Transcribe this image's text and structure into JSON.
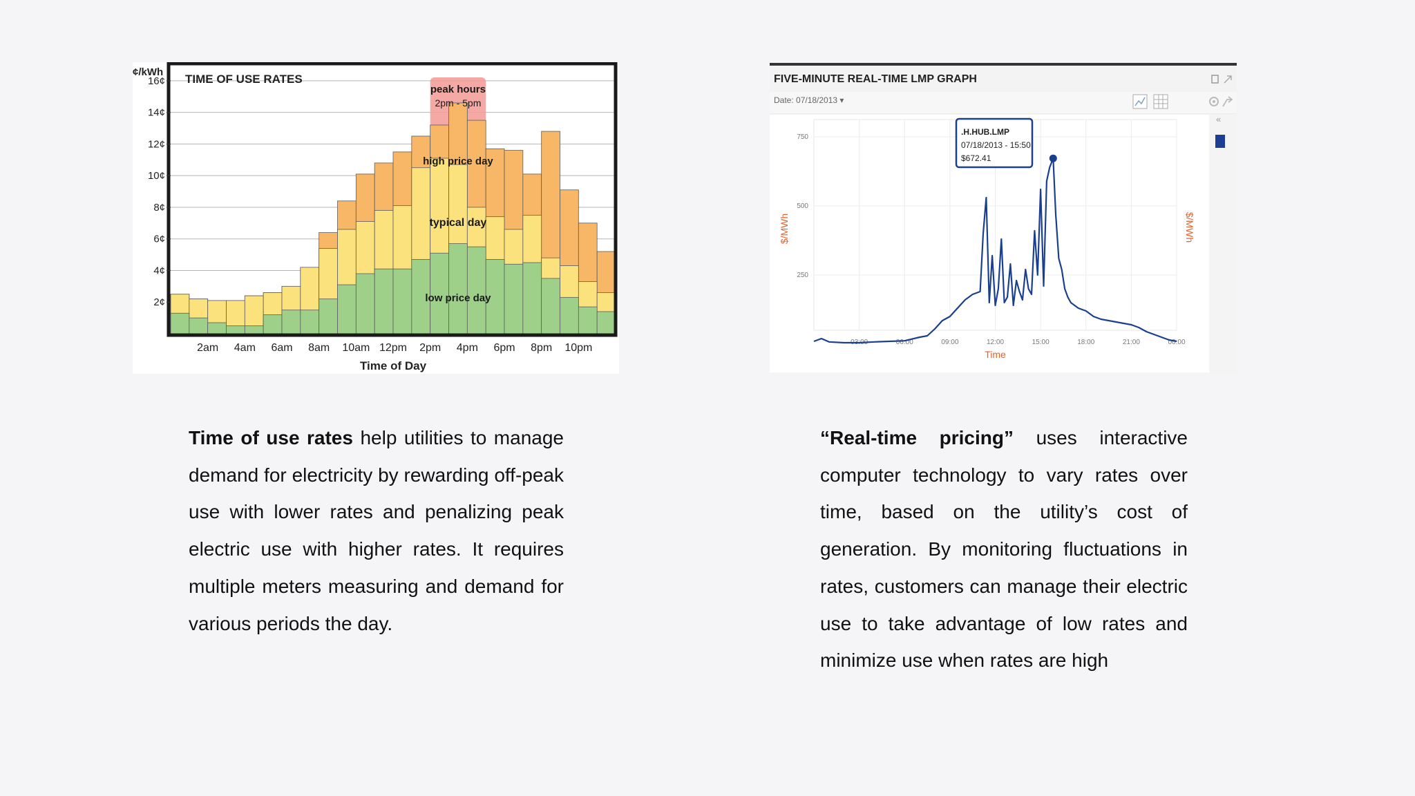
{
  "chart_data": [
    {
      "type": "bar",
      "title": "TIME OF USE RATES",
      "ylabel": "¢/kWh",
      "xlabel": "Time of Day",
      "ylim": [
        0,
        17
      ],
      "yticks": [
        "2¢",
        "4¢",
        "6¢",
        "8¢",
        "10¢",
        "12¢",
        "14¢",
        "16¢"
      ],
      "yticks_values": [
        2,
        4,
        6,
        8,
        10,
        12,
        14,
        16
      ],
      "xticks": [
        "2am",
        "4am",
        "6am",
        "8am",
        "10am",
        "12pm",
        "2pm",
        "4pm",
        "6pm",
        "8pm",
        "10pm"
      ],
      "bars_per_day": 24,
      "series": [
        {
          "name": "low price day",
          "color": "#9fd08a",
          "values": [
            1.3,
            1.0,
            0.7,
            0.5,
            0.5,
            1.2,
            1.5,
            1.5,
            2.2,
            3.1,
            3.8,
            4.1,
            4.1,
            4.7,
            5.1,
            5.7,
            5.5,
            4.7,
            4.4,
            4.5,
            3.5,
            2.3,
            1.7,
            1.4
          ]
        },
        {
          "name": "typical day",
          "color": "#fbe27d",
          "values": [
            2.5,
            2.2,
            2.1,
            2.1,
            2.4,
            2.6,
            3.0,
            4.2,
            5.4,
            6.6,
            7.1,
            7.8,
            8.1,
            10.5,
            11.1,
            10.7,
            8.0,
            7.4,
            6.6,
            7.5,
            4.8,
            4.3,
            3.3,
            2.6
          ]
        },
        {
          "name": "high price day",
          "color": "#f7b766",
          "values": [
            2.5,
            2.2,
            2.1,
            2.1,
            2.4,
            2.6,
            3.0,
            4.2,
            6.4,
            8.4,
            10.1,
            10.8,
            11.5,
            12.5,
            13.2,
            14.6,
            13.5,
            11.7,
            11.6,
            10.1,
            12.8,
            9.1,
            7.0,
            5.2
          ]
        }
      ],
      "annotations": [
        {
          "text": "peak hours",
          "subtext": "2pm - 5pm",
          "hours": [
            14,
            17
          ],
          "color": "#f29a95"
        },
        {
          "text": "high price day"
        },
        {
          "text": "typical day"
        },
        {
          "text": "low price day"
        }
      ]
    },
    {
      "type": "line",
      "title": "FIVE-MINUTE REAL-TIME LMP GRAPH",
      "date_label": "Date: 07/18/2013 ▾",
      "ylabel": "$/MWh",
      "ylabel_right": "$/MWh",
      "xlabel": "Time",
      "ylim": [
        0,
        750
      ],
      "yticks": [
        250,
        500,
        750
      ],
      "xticks": [
        "03:00",
        "06:00",
        "09:00",
        "12:00",
        "15:00",
        "18:00",
        "21:00",
        "00:00"
      ],
      "line_color": "#1a3f8f",
      "axis_label_color": "#e2622b",
      "series": [
        {
          "name": "",
          "x": [
            0,
            0.5,
            1,
            2,
            3,
            4,
            5,
            6,
            7,
            7.5,
            8,
            8.5,
            9,
            9.5,
            10,
            10.5,
            11,
            11.2,
            11.4,
            11.6,
            11.8,
            12,
            12.2,
            12.4,
            12.6,
            12.8,
            13,
            13.2,
            13.4,
            13.6,
            13.8,
            14,
            14.2,
            14.4,
            14.6,
            14.8,
            15,
            15.2,
            15.4,
            15.6,
            15.83,
            16,
            16.2,
            16.4,
            16.6,
            16.8,
            17,
            17.5,
            18,
            18.5,
            19,
            19.5,
            20,
            20.5,
            21,
            21.5,
            22,
            22.5,
            23,
            23.5,
            24
          ],
          "values": [
            10,
            20,
            8,
            5,
            5,
            8,
            10,
            12,
            25,
            30,
            55,
            85,
            100,
            130,
            160,
            180,
            190,
            400,
            530,
            150,
            320,
            140,
            200,
            380,
            150,
            170,
            290,
            140,
            230,
            190,
            160,
            270,
            200,
            180,
            410,
            250,
            560,
            210,
            590,
            640,
            672,
            470,
            310,
            270,
            200,
            170,
            150,
            130,
            120,
            100,
            90,
            85,
            80,
            75,
            70,
            60,
            45,
            35,
            25,
            15,
            10
          ]
        }
      ],
      "tooltip": {
        "line1": ".H.HUB.LMP",
        "line2": "07/18/2013 - 15:50",
        "line3": "$672.41"
      }
    }
  ],
  "left_text": {
    "bold": "Time of use rates",
    "body": " help utilities to manage demand for electricity by rewarding off-peak use with lower rates and penalizing peak electric use with higher rates. It requires multiple meters measuring and demand for various periods the day."
  },
  "right_text": {
    "bold": "“Real-time pricing”",
    "body": " uses interactive computer technology to vary rates over time, based on the utility’s cost of generation. By monitoring fluctuations in rates, customers can manage their electric use to take advantage of low rates and minimize use when rates are high"
  }
}
